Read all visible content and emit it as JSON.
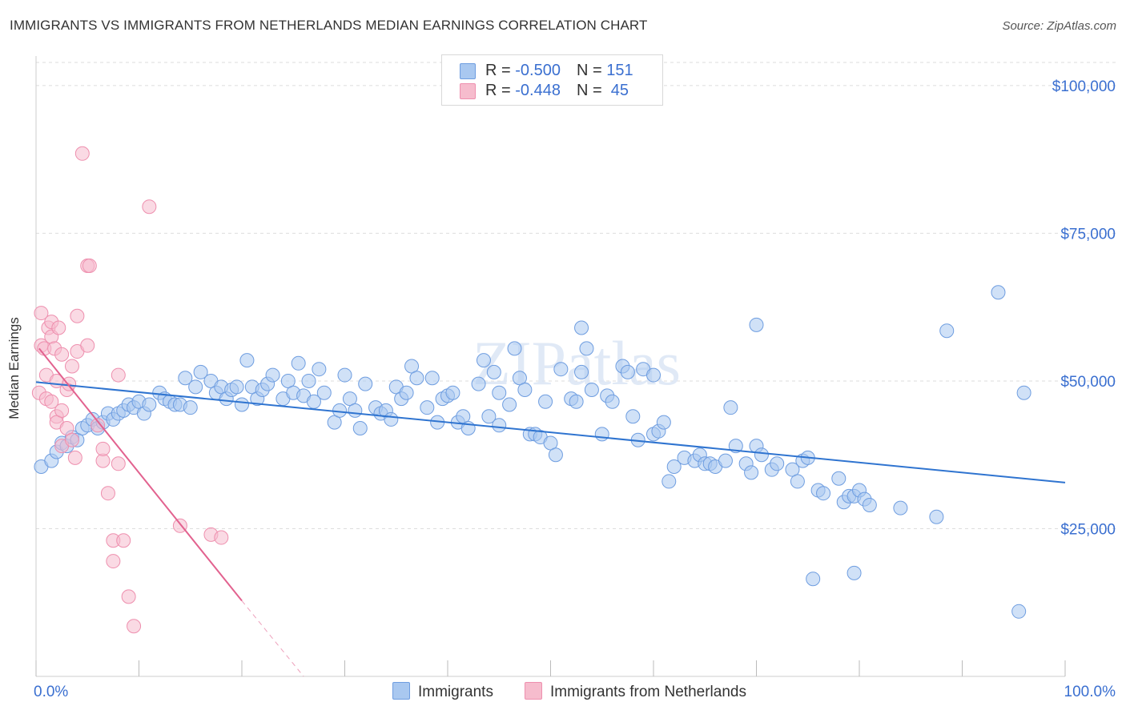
{
  "header": {
    "title": "IMMIGRANTS VS IMMIGRANTS FROM NETHERLANDS MEDIAN EARNINGS CORRELATION CHART",
    "source": "Source: ZipAtlas.com"
  },
  "legend": {
    "rows": [
      {
        "r_label": "R = ",
        "r_value": "-0.500",
        "n_label": "N = ",
        "n_value": "151"
      },
      {
        "r_label": "R = ",
        "r_value": "-0.448",
        "n_label": "N = ",
        "n_value": " 45"
      }
    ],
    "series_names": [
      "Immigrants",
      "Immigrants from Netherlands"
    ]
  },
  "colors": {
    "blue_fill": "#a9c8f0",
    "blue_stroke": "#6e9de0",
    "blue_line": "#2f74d0",
    "pink_fill": "#f6bccd",
    "pink_stroke": "#ee8fae",
    "pink_line": "#e2628f",
    "axis_text": "#3a6fd0",
    "grid": "#dddddd"
  },
  "chart_data": {
    "type": "scatter",
    "title": "IMMIGRANTS VS IMMIGRANTS FROM NETHERLANDS MEDIAN EARNINGS CORRELATION CHART",
    "xlabel": "",
    "ylabel": "Median Earnings",
    "xlim": [
      0,
      100
    ],
    "ylim": [
      0,
      105000
    ],
    "x_tick_labels": [
      "0.0%",
      "100.0%"
    ],
    "y_ticks": [
      25000,
      50000,
      75000,
      100000
    ],
    "y_tick_labels": [
      "$25,000",
      "$50,000",
      "$75,000",
      "$100,000"
    ],
    "grid": true,
    "watermark": "ZIPatlas",
    "series": [
      {
        "name": "Immigrants",
        "trend": {
          "x": [
            0,
            100
          ],
          "y": [
            49800,
            32800
          ]
        },
        "points": [
          [
            0.5,
            35500
          ],
          [
            1.5,
            36500
          ],
          [
            2,
            38000
          ],
          [
            2.5,
            39500
          ],
          [
            3,
            39000
          ],
          [
            3.5,
            40500
          ],
          [
            4,
            40000
          ],
          [
            4.5,
            42000
          ],
          [
            5,
            42500
          ],
          [
            5.5,
            43500
          ],
          [
            6,
            42000
          ],
          [
            6.5,
            43000
          ],
          [
            7,
            44500
          ],
          [
            7.5,
            43500
          ],
          [
            8,
            44500
          ],
          [
            8.5,
            45000
          ],
          [
            9,
            46000
          ],
          [
            9.5,
            45500
          ],
          [
            10,
            46500
          ],
          [
            10.5,
            44500
          ],
          [
            11,
            46000
          ],
          [
            12,
            48000
          ],
          [
            12.5,
            47000
          ],
          [
            13,
            46500
          ],
          [
            13.5,
            46000
          ],
          [
            14,
            46000
          ],
          [
            14.5,
            50500
          ],
          [
            15,
            45500
          ],
          [
            15.5,
            49000
          ],
          [
            16,
            51500
          ],
          [
            17,
            50000
          ],
          [
            17.5,
            48000
          ],
          [
            18,
            49000
          ],
          [
            18.5,
            47000
          ],
          [
            19,
            48500
          ],
          [
            19.5,
            49000
          ],
          [
            20,
            46000
          ],
          [
            20.5,
            53500
          ],
          [
            21,
            49000
          ],
          [
            21.5,
            47000
          ],
          [
            22,
            48500
          ],
          [
            22.5,
            49500
          ],
          [
            23,
            51000
          ],
          [
            24,
            47000
          ],
          [
            24.5,
            50000
          ],
          [
            25,
            48000
          ],
          [
            25.5,
            53000
          ],
          [
            26,
            47500
          ],
          [
            26.5,
            50000
          ],
          [
            27,
            46500
          ],
          [
            27.5,
            52000
          ],
          [
            28,
            48000
          ],
          [
            29,
            43000
          ],
          [
            29.5,
            45000
          ],
          [
            30,
            51000
          ],
          [
            30.5,
            47000
          ],
          [
            31,
            45000
          ],
          [
            31.5,
            42000
          ],
          [
            32,
            49500
          ],
          [
            33,
            45500
          ],
          [
            33.5,
            44500
          ],
          [
            34,
            45000
          ],
          [
            34.5,
            43500
          ],
          [
            35,
            49000
          ],
          [
            35.5,
            47000
          ],
          [
            36,
            48000
          ],
          [
            36.5,
            52500
          ],
          [
            37,
            50500
          ],
          [
            38,
            45500
          ],
          [
            38.5,
            50500
          ],
          [
            39,
            43000
          ],
          [
            39.5,
            47000
          ],
          [
            40,
            47500
          ],
          [
            40.5,
            48000
          ],
          [
            41,
            43000
          ],
          [
            41.5,
            44000
          ],
          [
            42,
            42000
          ],
          [
            43,
            49500
          ],
          [
            43.5,
            53500
          ],
          [
            44,
            44000
          ],
          [
            44.5,
            51500
          ],
          [
            45,
            42500
          ],
          [
            46,
            46000
          ],
          [
            46.5,
            55500
          ],
          [
            47,
            50500
          ],
          [
            47.5,
            48500
          ],
          [
            48,
            41000
          ],
          [
            48.5,
            41000
          ],
          [
            49,
            40500
          ],
          [
            49.5,
            46500
          ],
          [
            50,
            39500
          ],
          [
            50.5,
            37500
          ],
          [
            51,
            52000
          ],
          [
            52,
            47000
          ],
          [
            52.5,
            46500
          ],
          [
            53,
            59000
          ],
          [
            53.5,
            55500
          ],
          [
            54,
            48500
          ],
          [
            55,
            41000
          ],
          [
            55.5,
            47500
          ],
          [
            56,
            46500
          ],
          [
            57,
            52500
          ],
          [
            57.5,
            51500
          ],
          [
            58,
            44000
          ],
          [
            58.5,
            40000
          ],
          [
            59,
            52000
          ],
          [
            60,
            41000
          ],
          [
            60.5,
            41500
          ],
          [
            61,
            43000
          ],
          [
            61.5,
            33000
          ],
          [
            62,
            35500
          ],
          [
            63,
            37000
          ],
          [
            64,
            36500
          ],
          [
            64.5,
            37500
          ],
          [
            65,
            36000
          ],
          [
            65.5,
            36000
          ],
          [
            66,
            35500
          ],
          [
            67,
            36500
          ],
          [
            67.5,
            45500
          ],
          [
            68,
            39000
          ],
          [
            69,
            36000
          ],
          [
            69.5,
            34500
          ],
          [
            70,
            39000
          ],
          [
            70.5,
            37500
          ],
          [
            71.5,
            35000
          ],
          [
            72,
            36000
          ],
          [
            73.5,
            35000
          ],
          [
            74,
            33000
          ],
          [
            74.5,
            36500
          ],
          [
            75,
            37000
          ],
          [
            76,
            31500
          ],
          [
            76.5,
            31000
          ],
          [
            78,
            33500
          ],
          [
            78.5,
            29500
          ],
          [
            79,
            30500
          ],
          [
            79.5,
            30500
          ],
          [
            80,
            31500
          ],
          [
            80.5,
            30000
          ],
          [
            81,
            29000
          ],
          [
            84,
            28500
          ],
          [
            70,
            59500
          ],
          [
            87.5,
            27000
          ],
          [
            88.5,
            58500
          ],
          [
            75.5,
            16500
          ],
          [
            79.5,
            17500
          ],
          [
            95.5,
            11000
          ],
          [
            93.5,
            65000
          ],
          [
            53,
            51500
          ],
          [
            60,
            51000
          ],
          [
            45,
            48000
          ],
          [
            96,
            48000
          ]
        ]
      },
      {
        "name": "Immigrants from Netherlands",
        "trend": {
          "x": [
            0.3,
            20
          ],
          "y": [
            55500,
            12800
          ]
        },
        "trend_dashed": {
          "x": [
            20,
            26
          ],
          "y": [
            12800,
            0
          ]
        },
        "points": [
          [
            0.3,
            48000
          ],
          [
            0.5,
            56000
          ],
          [
            0.5,
            61500
          ],
          [
            0.8,
            55500
          ],
          [
            1,
            51000
          ],
          [
            1,
            47000
          ],
          [
            1.2,
            59000
          ],
          [
            1.5,
            60000
          ],
          [
            1.5,
            57500
          ],
          [
            1.5,
            46500
          ],
          [
            1.8,
            55500
          ],
          [
            2,
            50000
          ],
          [
            2,
            44000
          ],
          [
            2,
            43000
          ],
          [
            2.2,
            59000
          ],
          [
            2.5,
            54500
          ],
          [
            2.5,
            45000
          ],
          [
            2.5,
            39000
          ],
          [
            3,
            48500
          ],
          [
            3,
            42000
          ],
          [
            3.2,
            49500
          ],
          [
            3.5,
            52500
          ],
          [
            3.5,
            40000
          ],
          [
            3.8,
            37000
          ],
          [
            4,
            55000
          ],
          [
            4,
            61000
          ],
          [
            5,
            69500
          ],
          [
            5.2,
            69500
          ],
          [
            5,
            56000
          ],
          [
            6,
            42500
          ],
          [
            6.5,
            36500
          ],
          [
            6.5,
            38500
          ],
          [
            7,
            31000
          ],
          [
            7.5,
            23000
          ],
          [
            7.5,
            19500
          ],
          [
            8,
            51000
          ],
          [
            8,
            36000
          ],
          [
            8.5,
            23000
          ],
          [
            9,
            13500
          ],
          [
            9.5,
            8500
          ],
          [
            4.5,
            88500
          ],
          [
            11,
            79500
          ],
          [
            14,
            25500
          ],
          [
            17,
            24000
          ],
          [
            18,
            23500
          ]
        ]
      }
    ]
  }
}
